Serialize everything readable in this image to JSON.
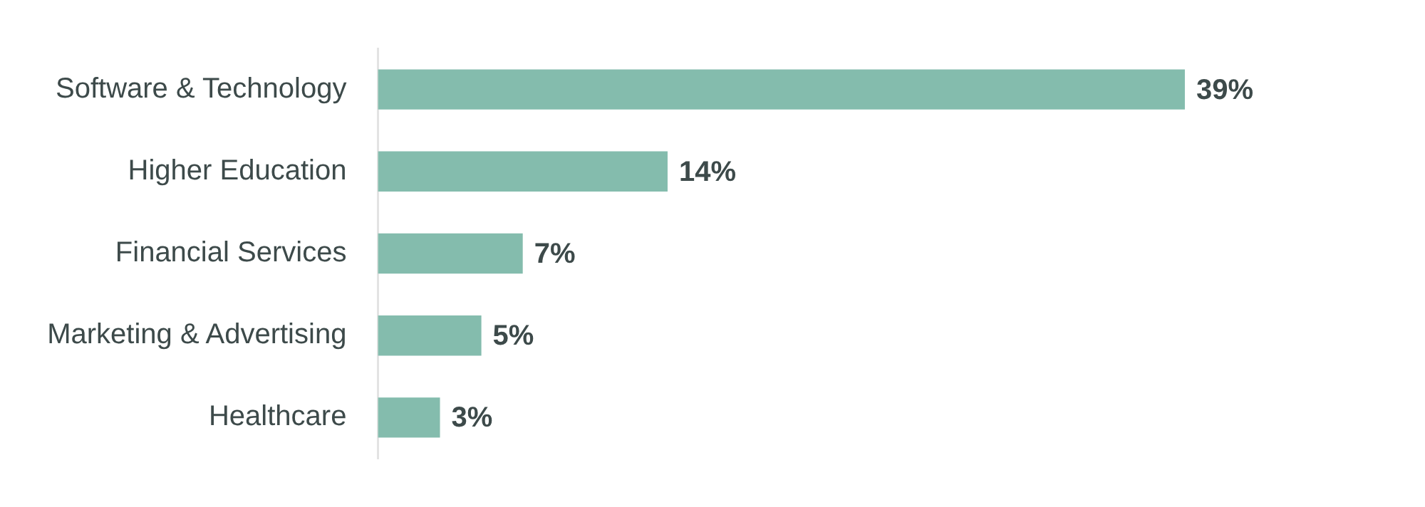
{
  "chart_data": {
    "type": "bar",
    "orientation": "horizontal",
    "categories": [
      "Software & Technology",
      "Higher Education",
      "Financial Services",
      "Marketing & Advertising",
      "Healthcare"
    ],
    "values": [
      39,
      14,
      7,
      5,
      3
    ],
    "value_labels": [
      "39%",
      "14%",
      "7%",
      "5%",
      "3%"
    ],
    "color": "#84bcad"
  }
}
